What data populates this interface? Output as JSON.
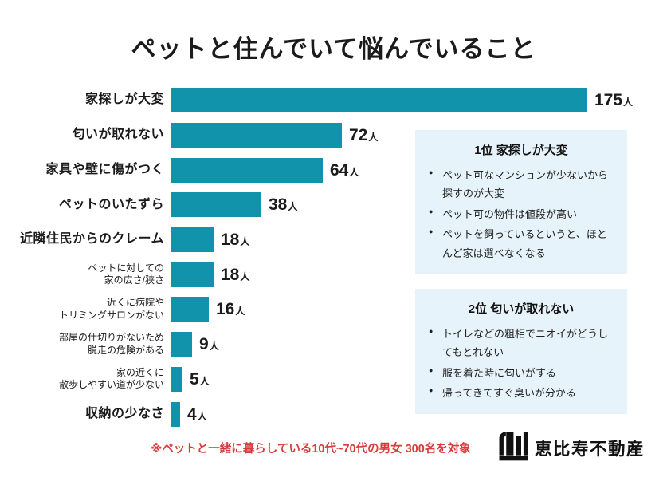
{
  "title": "ペットと住んでいて悩んでいること",
  "colors": {
    "bar": "#1194ab",
    "info_box_bg": "#e6f3fa",
    "footnote": "#d63c3c",
    "text": "#1b1b1b"
  },
  "chart_data": {
    "type": "bar",
    "orientation": "horizontal",
    "title": "ペットと住んでいて悩んでいること",
    "unit": "人",
    "max_value": 175,
    "categories": [
      "家探しが大変",
      "匂いが取れない",
      "家具や壁に傷がつく",
      "ペットのいたずら",
      "近隣住民からのクレーム",
      "ペットに対しての家の広さ/狭さ",
      "近くに病院やトリミングサロンがない",
      "部屋の仕切りがないため脱走の危険がある",
      "家の近くに散歩しやすい道が少ない",
      "収納の少なさ"
    ],
    "values": [
      175,
      72,
      64,
      38,
      18,
      18,
      16,
      9,
      5,
      4
    ],
    "label_lines": [
      [
        "家探しが大変"
      ],
      [
        "匂いが取れない"
      ],
      [
        "家具や壁に傷がつく"
      ],
      [
        "ペットのいたずら"
      ],
      [
        "近隣住民からのクレーム"
      ],
      [
        "ペットに対しての",
        "家の広さ/狭さ"
      ],
      [
        "近くに病院や",
        "トリミングサロンがない"
      ],
      [
        "部屋の仕切りがないため",
        "脱走の危険がある"
      ],
      [
        "家の近くに",
        "散歩しやすい道が少ない"
      ],
      [
        "収納の少なさ"
      ]
    ],
    "grid": false,
    "legend": false
  },
  "info_boxes": [
    {
      "heading": "1位 家探しが大変",
      "bullets": [
        "ペット可なマンションが少ないから探すのが大変",
        "ペット可の物件は値段が高い",
        "ペットを飼っているというと、ほとんど家は選べなくなる"
      ]
    },
    {
      "heading": "2位 匂いが取れない",
      "bullets": [
        "トイレなどの粗相でニオイがどうしてもとれない",
        "服を着た時に匂いがする",
        "帰ってきてすぐ臭いが分かる"
      ]
    }
  ],
  "footnote": "※ペットと一緒に暮らしている10代~70代の男女 300名を対象",
  "logo": {
    "text": "恵比寿不動産",
    "icon": "buildings-m-icon"
  }
}
